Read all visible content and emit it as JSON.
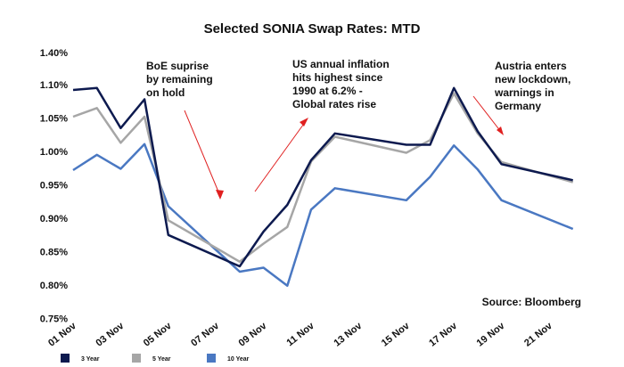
{
  "chart_data": {
    "type": "line",
    "title": "Selected SONIA Swap Rates: MTD",
    "xlabel": "",
    "ylabel": "",
    "ylim": [
      0.75,
      1.4
    ],
    "yticks": [
      "1.40%",
      "1.10%",
      "1.05%",
      "1.00%",
      "0.95%",
      "0.90%",
      "0.85%",
      "0.80%",
      "0.75%"
    ],
    "ytick_values": [
      1.4,
      1.1,
      1.05,
      1.0,
      0.95,
      0.9,
      0.85,
      0.8,
      0.75
    ],
    "x_tick_labels": [
      "01 Nov",
      "03 Nov",
      "05 Nov",
      "07 Nov",
      "09 Nov",
      "11 Nov",
      "13 Nov",
      "15 Nov",
      "17 Nov",
      "19 Nov",
      "21 Nov"
    ],
    "x_tick_days": [
      1,
      3,
      5,
      7,
      9,
      11,
      13,
      15,
      17,
      19,
      21
    ],
    "x": [
      1,
      2,
      3,
      4,
      5,
      8,
      9,
      10,
      11,
      12,
      15,
      16,
      17,
      18,
      19,
      22
    ],
    "series": [
      {
        "name": "3 Year",
        "color": "#0d1a4f",
        "values": [
          1.092,
          1.095,
          1.035,
          1.078,
          0.875,
          0.828,
          0.88,
          0.92,
          0.987,
          1.027,
          1.01,
          1.01,
          1.095,
          1.03,
          0.981,
          0.957
        ]
      },
      {
        "name": "5 Year",
        "color": "#a6a6a6",
        "values": [
          1.052,
          1.065,
          1.013,
          1.052,
          0.897,
          0.835,
          0.862,
          0.887,
          0.985,
          1.022,
          0.998,
          1.017,
          1.087,
          1.027,
          0.984,
          0.954
        ]
      },
      {
        "name": "10 Year",
        "color": "#4a78c2",
        "values": [
          0.972,
          0.995,
          0.974,
          1.011,
          0.918,
          0.82,
          0.826,
          0.799,
          0.913,
          0.945,
          0.927,
          0.962,
          1.009,
          0.973,
          0.927,
          0.884
        ]
      }
    ],
    "annotations": [
      {
        "id": "boe",
        "lines": [
          "BoE suprise",
          "by remaining",
          "on hold"
        ]
      },
      {
        "id": "us",
        "lines": [
          "US annual inflation",
          "hits highest since",
          "1990 at 6.2% -",
          "Global rates rise"
        ]
      },
      {
        "id": "austria",
        "lines": [
          "Austria enters",
          "new lockdown,",
          "warnings in",
          "Germany"
        ]
      }
    ],
    "source": "Source: Bloomberg",
    "grid": false,
    "legend_position": "bottom-left"
  }
}
